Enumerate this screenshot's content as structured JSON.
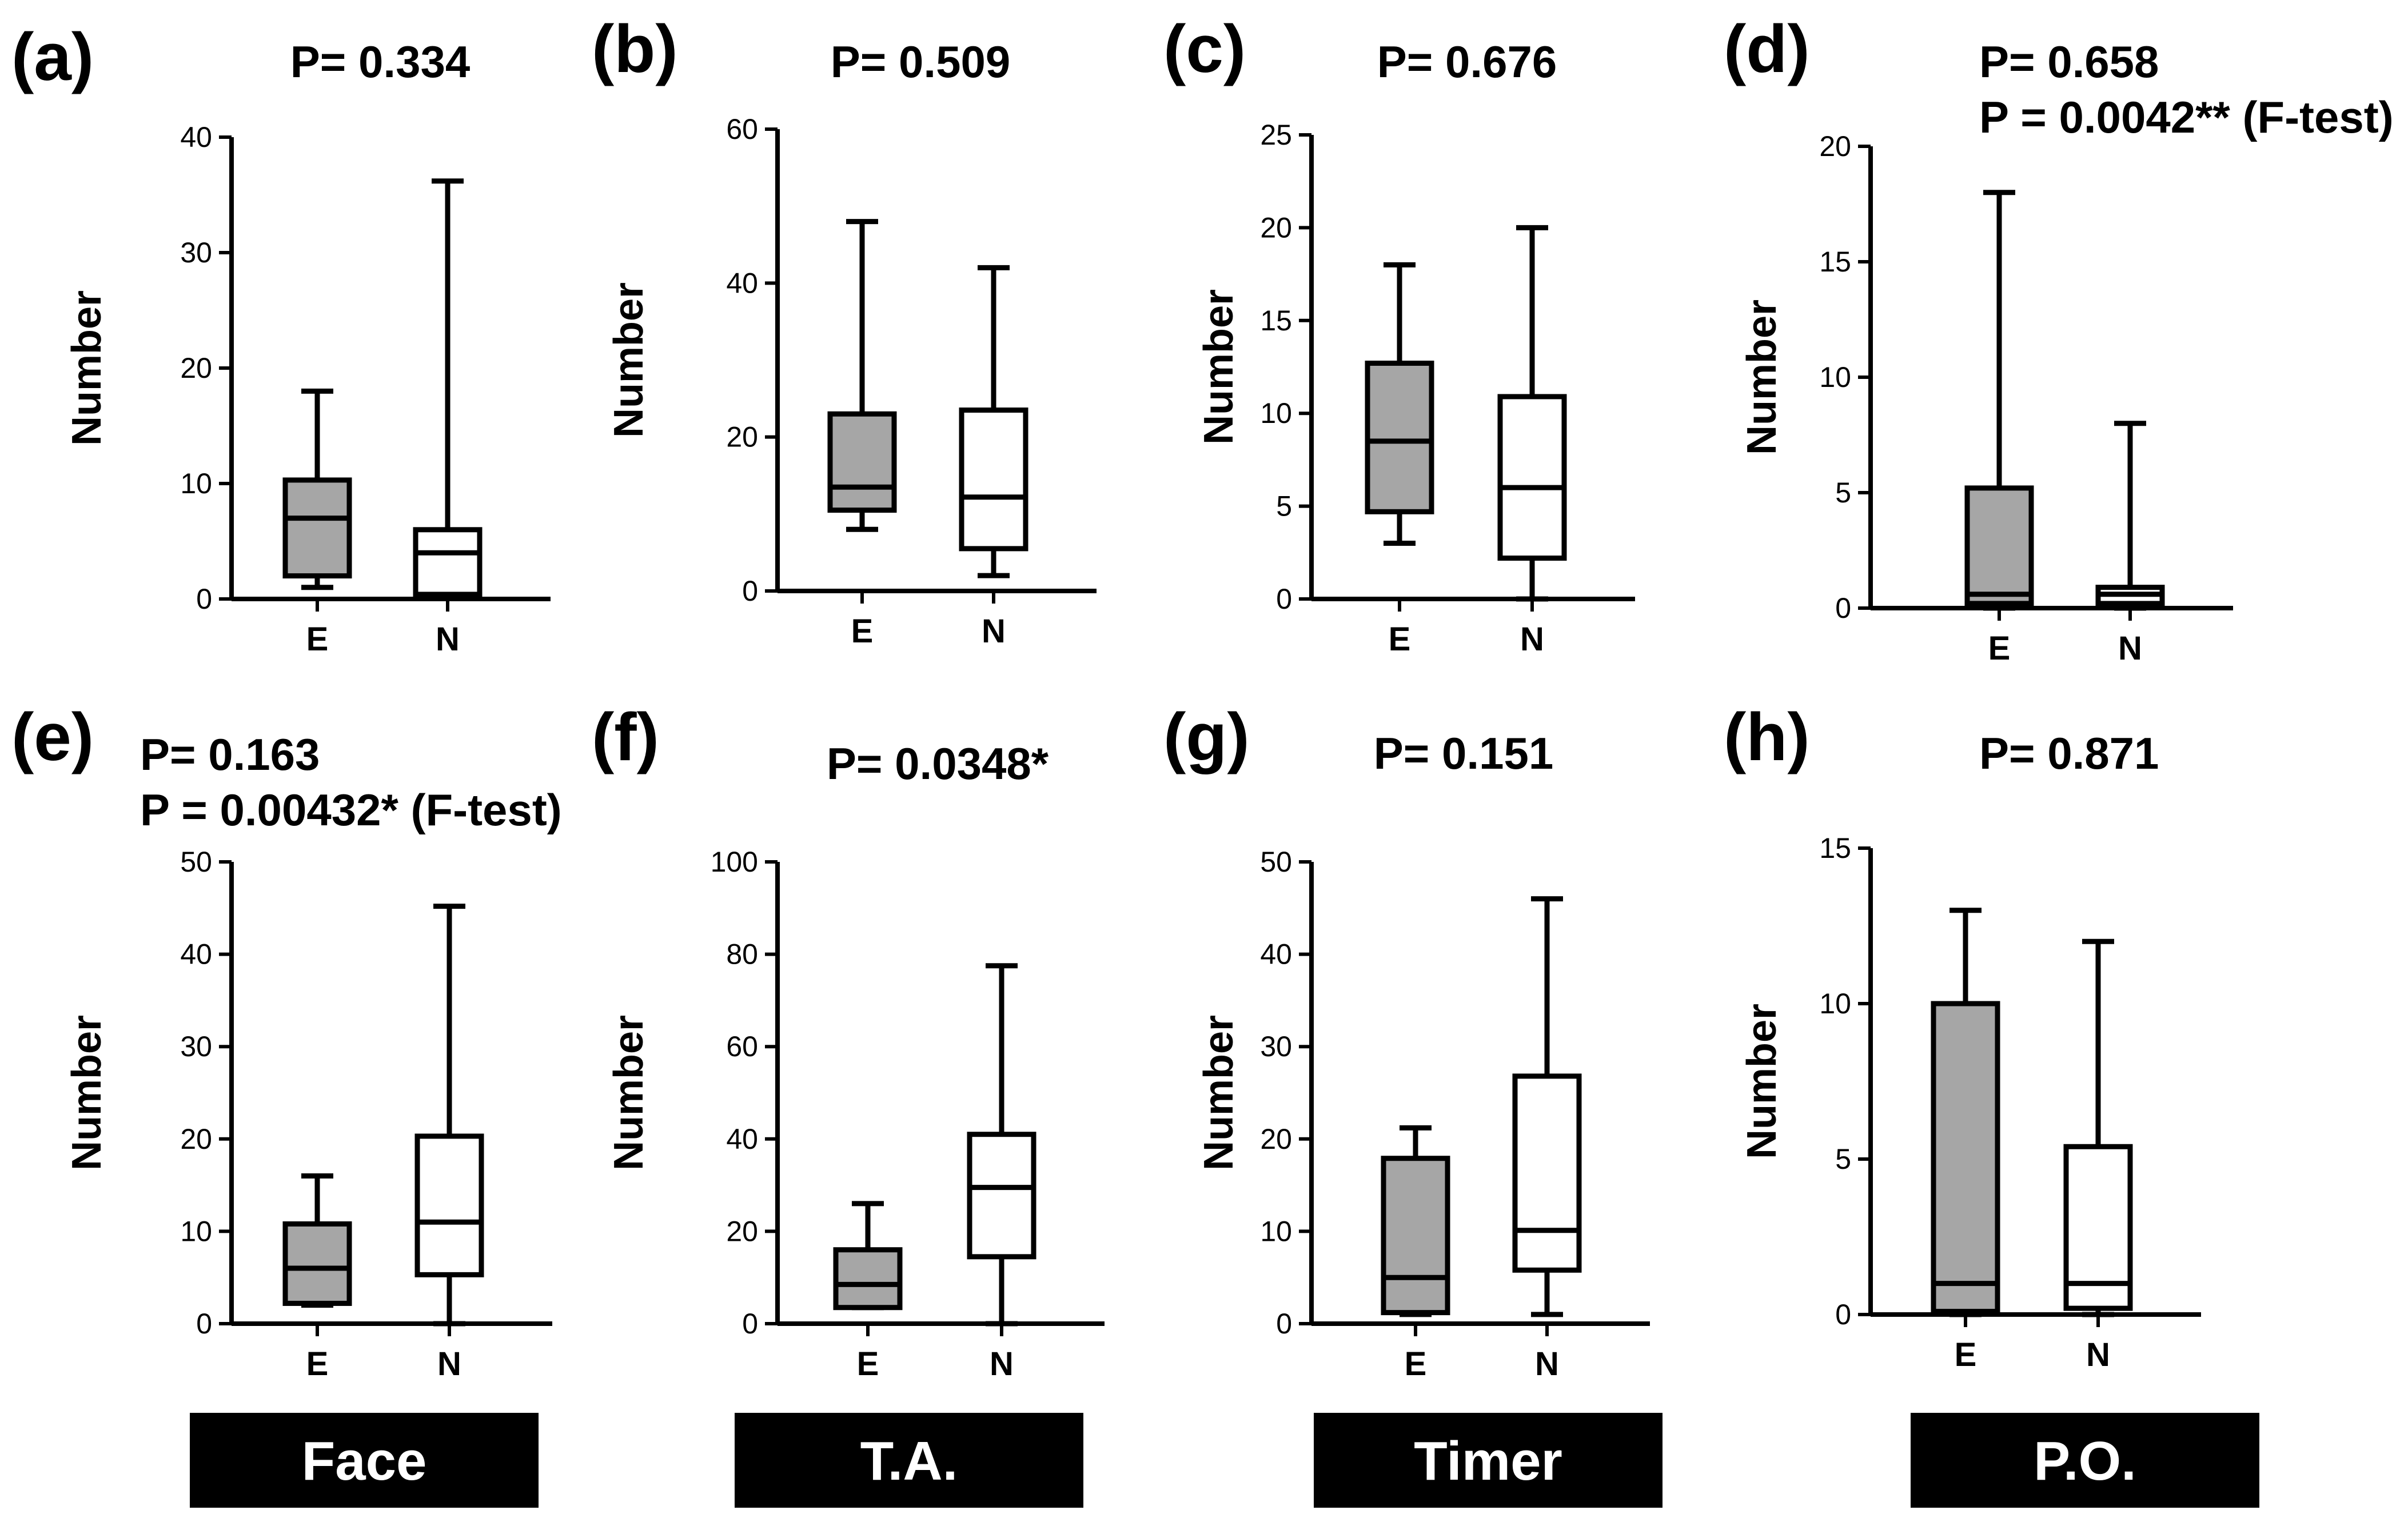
{
  "colors": {
    "box_E": "#a6a6a6",
    "box_N": "#ffffff",
    "line": "#000000",
    "footer_bg": "#000000",
    "footer_text": "#ffffff"
  },
  "chart_data": [
    {
      "type": "box",
      "panel": "(a)",
      "p_lines": [
        "P= 0.334"
      ],
      "ylabel": "Number",
      "ylim": [
        0,
        40
      ],
      "yticks": [
        0,
        10,
        20,
        30,
        40
      ],
      "categories": [
        "E",
        "N"
      ],
      "boxes": [
        {
          "category": "E",
          "min": 1,
          "q1": 2,
          "median": 7,
          "q3": 10.3,
          "max": 18
        },
        {
          "category": "N",
          "min": 0.3,
          "q1": 0.4,
          "median": 4,
          "q3": 6,
          "max": 36.2
        }
      ]
    },
    {
      "type": "box",
      "panel": "(b)",
      "p_lines": [
        "P= 0.509"
      ],
      "ylabel": "Number",
      "ylim": [
        0,
        60
      ],
      "yticks": [
        0,
        20,
        40,
        60
      ],
      "categories": [
        "E",
        "N"
      ],
      "boxes": [
        {
          "category": "E",
          "min": 8,
          "q1": 10.5,
          "median": 13.5,
          "q3": 23,
          "max": 48
        },
        {
          "category": "N",
          "min": 2,
          "q1": 5.5,
          "median": 12.2,
          "q3": 23.5,
          "max": 42
        }
      ]
    },
    {
      "type": "box",
      "panel": "(c)",
      "p_lines": [
        "P= 0.676"
      ],
      "ylabel": "Number",
      "ylim": [
        0,
        25
      ],
      "yticks": [
        0,
        5,
        10,
        15,
        20,
        25
      ],
      "categories": [
        "E",
        "N"
      ],
      "boxes": [
        {
          "category": "E",
          "min": 3,
          "q1": 4.7,
          "median": 8.5,
          "q3": 12.7,
          "max": 18
        },
        {
          "category": "N",
          "min": 0,
          "q1": 2.2,
          "median": 6,
          "q3": 10.9,
          "max": 20
        }
      ]
    },
    {
      "type": "box",
      "panel": "(d)",
      "p_lines": [
        "P= 0.658",
        "P = 0.0042** (F-test)"
      ],
      "ylabel": "Number",
      "ylim": [
        0,
        20
      ],
      "yticks": [
        0,
        5,
        10,
        15,
        20
      ],
      "categories": [
        "E",
        "N"
      ],
      "boxes": [
        {
          "category": "E",
          "min": 0,
          "q1": 0.2,
          "median": 0.6,
          "q3": 5.2,
          "max": 18
        },
        {
          "category": "N",
          "min": 0,
          "q1": 0.2,
          "median": 0.6,
          "q3": 0.9,
          "max": 8
        }
      ]
    },
    {
      "type": "box",
      "panel": "(e)",
      "p_lines": [
        "P= 0.163",
        "P = 0.00432* (F-test)"
      ],
      "ylabel": "Number",
      "ylim": [
        0,
        50
      ],
      "yticks": [
        0,
        10,
        20,
        30,
        40,
        50
      ],
      "categories": [
        "E",
        "N"
      ],
      "boxes": [
        {
          "category": "E",
          "min": 2,
          "q1": 2.2,
          "median": 6,
          "q3": 10.8,
          "max": 16
        },
        {
          "category": "N",
          "min": 0,
          "q1": 5.3,
          "median": 11,
          "q3": 20.3,
          "max": 45.2
        }
      ]
    },
    {
      "type": "box",
      "panel": "(f)",
      "p_lines": [
        "P= 0.0348*"
      ],
      "ylabel": "Number",
      "ylim": [
        0,
        100
      ],
      "yticks": [
        0,
        20,
        40,
        60,
        80,
        100
      ],
      "categories": [
        "E",
        "N"
      ],
      "boxes": [
        {
          "category": "E",
          "min": 3.5,
          "q1": 3.5,
          "median": 8.5,
          "q3": 16,
          "max": 26
        },
        {
          "category": "N",
          "min": 0,
          "q1": 14.5,
          "median": 29.5,
          "q3": 41,
          "max": 77.5
        }
      ]
    },
    {
      "type": "box",
      "panel": "(g)",
      "p_lines": [
        "P= 0.151"
      ],
      "ylabel": "Number",
      "ylim": [
        0,
        50
      ],
      "yticks": [
        0,
        10,
        20,
        30,
        40,
        50
      ],
      "categories": [
        "E",
        "N"
      ],
      "boxes": [
        {
          "category": "E",
          "min": 1,
          "q1": 1.2,
          "median": 5,
          "q3": 17.9,
          "max": 21.2
        },
        {
          "category": "N",
          "min": 1,
          "q1": 5.8,
          "median": 10.1,
          "q3": 26.8,
          "max": 46
        }
      ]
    },
    {
      "type": "box",
      "panel": "(h)",
      "p_lines": [
        "P= 0.871"
      ],
      "ylabel": "Number",
      "ylim": [
        0,
        15
      ],
      "yticks": [
        0,
        5,
        10,
        15
      ],
      "categories": [
        "E",
        "N"
      ],
      "boxes": [
        {
          "category": "E",
          "min": 0,
          "q1": 0.1,
          "median": 1,
          "q3": 10,
          "max": 13
        },
        {
          "category": "N",
          "min": 0,
          "q1": 0.2,
          "median": 1,
          "q3": 5.4,
          "max": 12
        }
      ]
    }
  ],
  "footer_labels": [
    "Face",
    "T.A.",
    "Timer",
    "P.O."
  ]
}
